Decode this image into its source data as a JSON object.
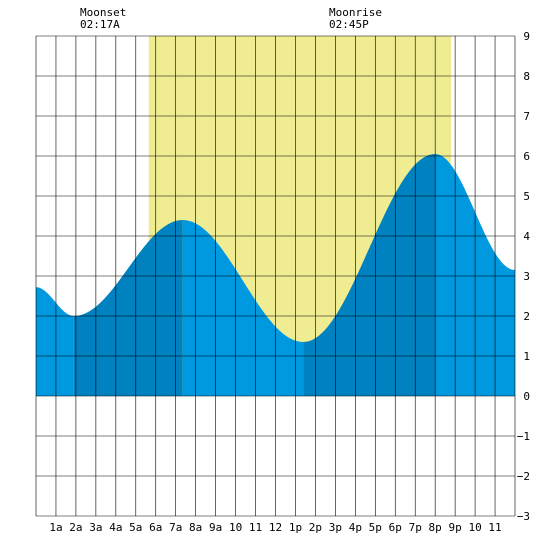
{
  "chart_data": {
    "type": "area",
    "title": "",
    "xlabel": "",
    "ylabel": "",
    "xlim": [
      0,
      24
    ],
    "ylim": [
      -3,
      9
    ],
    "grid": true,
    "x_ticks": [
      {
        "x": 1,
        "label": "1a"
      },
      {
        "x": 2,
        "label": "2a"
      },
      {
        "x": 3,
        "label": "3a"
      },
      {
        "x": 4,
        "label": "4a"
      },
      {
        "x": 5,
        "label": "5a"
      },
      {
        "x": 6,
        "label": "6a"
      },
      {
        "x": 7,
        "label": "7a"
      },
      {
        "x": 8,
        "label": "8a"
      },
      {
        "x": 9,
        "label": "9a"
      },
      {
        "x": 10,
        "label": "10"
      },
      {
        "x": 11,
        "label": "11"
      },
      {
        "x": 12,
        "label": "12"
      },
      {
        "x": 13,
        "label": "1p"
      },
      {
        "x": 14,
        "label": "2p"
      },
      {
        "x": 15,
        "label": "3p"
      },
      {
        "x": 16,
        "label": "4p"
      },
      {
        "x": 17,
        "label": "5p"
      },
      {
        "x": 18,
        "label": "6p"
      },
      {
        "x": 19,
        "label": "7p"
      },
      {
        "x": 20,
        "label": "8p"
      },
      {
        "x": 21,
        "label": "9p"
      },
      {
        "x": 22,
        "label": "10"
      },
      {
        "x": 23,
        "label": "11"
      }
    ],
    "y_ticks": [
      -3,
      -2,
      -1,
      0,
      1,
      2,
      3,
      4,
      5,
      6,
      7,
      8,
      9
    ],
    "daylight": {
      "start": 5.65,
      "end": 20.8,
      "color": "#f0ec92"
    },
    "tide_extremes": [
      {
        "time": 0.0,
        "height": 2.72
      },
      {
        "time": 1.9,
        "height": 2.0
      },
      {
        "time": 7.35,
        "height": 4.4
      },
      {
        "time": 13.4,
        "height": 1.35
      },
      {
        "time": 20.0,
        "height": 6.05
      },
      {
        "time": 24.0,
        "height": 3.15
      }
    ],
    "colors": {
      "tide_light": "#0099e0",
      "tide_dark": "#0081c0",
      "grid": "#000000"
    },
    "annotations": [
      {
        "id": "moonset",
        "title": "Moonset",
        "time_text": "02:17A",
        "x": 2.28
      },
      {
        "id": "moonrise",
        "title": "Moonrise",
        "time_text": "02:45P",
        "x": 14.75
      }
    ]
  }
}
